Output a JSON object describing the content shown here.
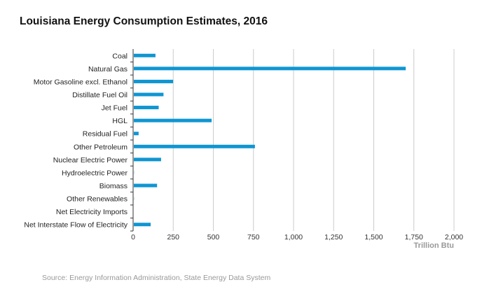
{
  "chart_data": {
    "type": "bar",
    "orientation": "horizontal",
    "title": "Louisiana Energy Consumption Estimates, 2016",
    "categories": [
      "Coal",
      "Natural Gas",
      "Motor Gasoline excl. Ethanol",
      "Distillate Fuel Oil",
      "Jet Fuel",
      "HGL",
      "Residual Fuel",
      "Other Petroleum",
      "Nuclear Electric Power",
      "Hydroelectric Power",
      "Biomass",
      "Other Renewables",
      "Net Electricity Imports",
      "Net Interstate Flow of Electricity"
    ],
    "values": [
      135,
      1695,
      245,
      185,
      155,
      485,
      30,
      755,
      170,
      1,
      145,
      1,
      0,
      105
    ],
    "xlabel": "Trillion Btu",
    "ylabel": "",
    "xlim": [
      0,
      2000
    ],
    "ticks": [
      0,
      250,
      500,
      750,
      1000,
      1250,
      1500,
      1750,
      2000
    ],
    "tick_labels": [
      "0",
      "250",
      "500",
      "750",
      "1,000",
      "1,250",
      "1,500",
      "1,750",
      "2,000"
    ],
    "grid": true,
    "bar_color": "#0f96d2",
    "grid_color": "#cccccc",
    "source": "Source: Energy Information Administration, State Energy Data System"
  }
}
